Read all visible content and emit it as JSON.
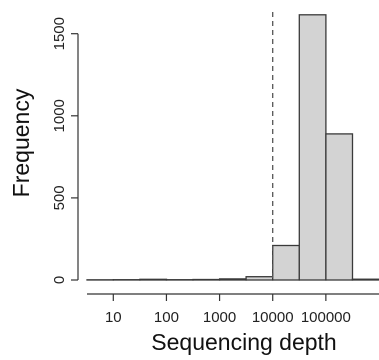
{
  "chart_data": {
    "type": "bar",
    "xlabel": "Sequencing depth",
    "ylabel": "Frequency",
    "x_scale": "log10",
    "xlim": [
      3.2,
      1000000
    ],
    "ylim": [
      0,
      1620
    ],
    "x_ticks": [
      {
        "value": 10,
        "label": "10"
      },
      {
        "value": 100,
        "label": "100"
      },
      {
        "value": 1000,
        "label": "1000"
      },
      {
        "value": 10000,
        "label": "10000"
      },
      {
        "value": 100000,
        "label": "100000"
      }
    ],
    "y_ticks": [
      {
        "value": 0,
        "label": "0"
      },
      {
        "value": 500,
        "label": "500"
      },
      {
        "value": 1000,
        "label": "1000"
      },
      {
        "value": 1500,
        "label": "1500"
      }
    ],
    "bins": [
      {
        "from": 3.2,
        "to": 10,
        "count": 1
      },
      {
        "from": 10,
        "to": 31.6,
        "count": 2
      },
      {
        "from": 31.6,
        "to": 100,
        "count": 4
      },
      {
        "from": 100,
        "to": 316,
        "count": 2
      },
      {
        "from": 316,
        "to": 1000,
        "count": 3
      },
      {
        "from": 1000,
        "to": 3160,
        "count": 7
      },
      {
        "from": 3160,
        "to": 10000,
        "count": 20
      },
      {
        "from": 10000,
        "to": 31600,
        "count": 210
      },
      {
        "from": 31600,
        "to": 100000,
        "count": 1615
      },
      {
        "from": 100000,
        "to": 316000,
        "count": 890
      },
      {
        "from": 316000,
        "to": 1000000,
        "count": 5
      }
    ],
    "reference_line": {
      "x": 10000,
      "style": "dashed"
    },
    "grid": false,
    "legend": "none"
  }
}
